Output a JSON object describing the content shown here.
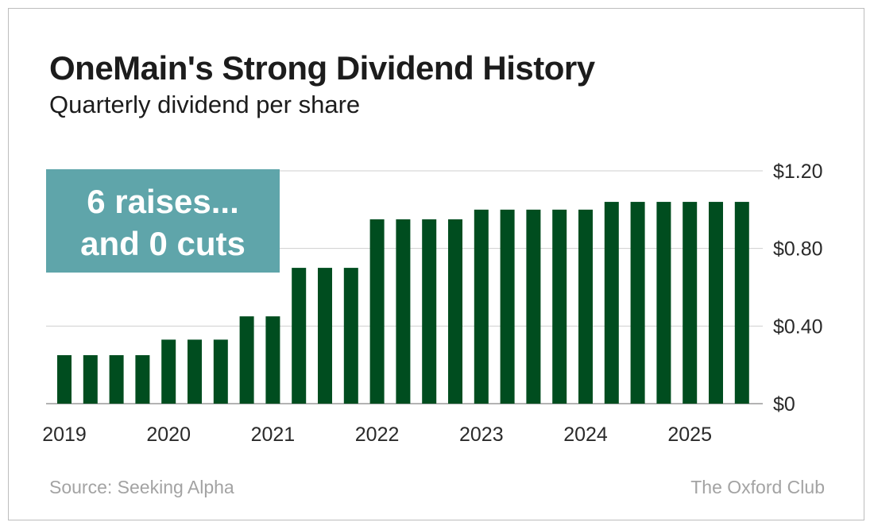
{
  "chart_data": {
    "type": "bar",
    "title": "OneMain's Strong Dividend History",
    "subtitle": "Quarterly dividend per share",
    "ylabel": "",
    "xlabel": "",
    "ylim": [
      0,
      1.2
    ],
    "yticks": [
      0,
      0.4,
      0.8,
      1.2
    ],
    "ytick_labels": [
      "$0",
      "$0.40",
      "$0.80",
      "$1.20"
    ],
    "year_labels": [
      "2019",
      "2020",
      "2021",
      "2022",
      "2023",
      "2024",
      "2025"
    ],
    "categories": [
      "2019 Q1",
      "2019 Q2",
      "2019 Q3",
      "2019 Q4",
      "2020 Q1",
      "2020 Q2",
      "2020 Q3",
      "2020 Q4",
      "2021 Q1",
      "2021 Q2",
      "2021 Q3",
      "2021 Q4",
      "2022 Q1",
      "2022 Q2",
      "2022 Q3",
      "2022 Q4",
      "2023 Q1",
      "2023 Q2",
      "2023 Q3",
      "2023 Q4",
      "2024 Q1",
      "2024 Q2",
      "2024 Q3",
      "2024 Q4",
      "2025 Q1",
      "2025 Q2",
      "2025 Q3"
    ],
    "values": [
      0.25,
      0.25,
      0.25,
      0.25,
      0.33,
      0.33,
      0.33,
      0.45,
      0.45,
      0.7,
      0.7,
      0.7,
      0.95,
      0.95,
      0.95,
      0.95,
      1.0,
      1.0,
      1.0,
      1.0,
      1.0,
      1.04,
      1.04,
      1.04,
      1.04,
      1.04,
      1.04
    ],
    "bar_color": "#004d1f",
    "grid": true,
    "annotation": {
      "line1": "6 raises...",
      "line2": "and 0 cuts",
      "color": "#5fa5aa"
    }
  },
  "footer": {
    "source": "Source: Seeking Alpha",
    "brand": "The Oxford Club"
  }
}
